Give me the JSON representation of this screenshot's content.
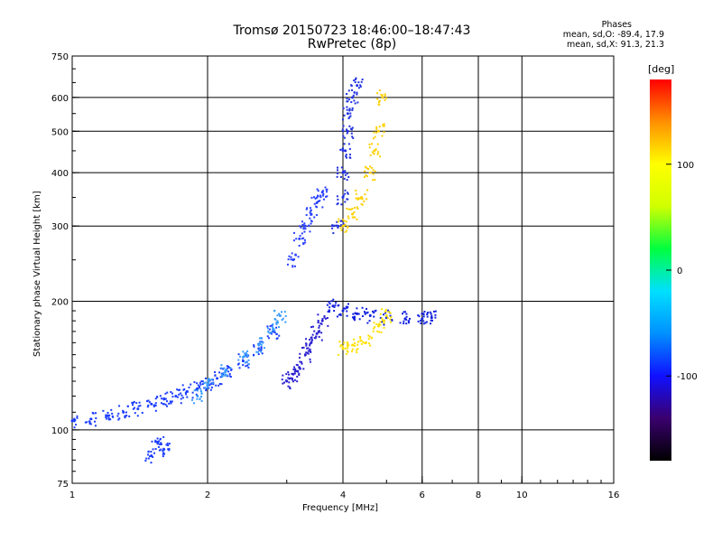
{
  "title": "Tromsø 20150723 18:46:00–18:47:43",
  "subtitle": "RwPretec (8p)",
  "stats": {
    "heading": "Phases",
    "line_o": "mean, sd,O:  -89.4, 17.9",
    "line_x": "mean, sd,X:   91.3, 21.3"
  },
  "chart_data": {
    "type": "scatter",
    "xlabel": "Frequency [MHz]",
    "ylabel": "Stationary phase Virtual Height [km]",
    "x_scale": "log",
    "y_scale": "log",
    "xlim": [
      1,
      16
    ],
    "ylim": [
      75,
      750
    ],
    "x_ticks": [
      1,
      2,
      4,
      6,
      8,
      10,
      16
    ],
    "y_ticks": [
      75,
      100,
      200,
      300,
      400,
      500,
      600,
      750
    ],
    "x_gridlines": [
      2,
      4,
      6,
      8,
      10
    ],
    "y_gridlines": [
      100,
      200,
      300,
      400,
      500,
      600
    ],
    "grid": true,
    "colorbar": {
      "label": "[deg]",
      "range": [
        -180,
        180
      ],
      "ticks": [
        100,
        0,
        -100
      ],
      "stops": [
        "#000000",
        "#3a006e",
        "#1010ff",
        "#0090ff",
        "#00e0ff",
        "#00ff40",
        "#d0ff00",
        "#ffff00",
        "#ff9000",
        "#ff0000"
      ]
    },
    "traces": [
      {
        "name_note": "",
        "color": "#1a3cff",
        "phase": -100,
        "x": [
          1.0,
          1.1,
          1.2,
          1.3,
          1.4,
          1.5,
          1.6,
          1.7,
          1.8,
          1.9,
          2.0,
          2.1,
          2.2,
          2.4,
          2.6,
          2.8
        ],
        "y": [
          105,
          106,
          108,
          110,
          112,
          115,
          118,
          120,
          123,
          125,
          128,
          132,
          138,
          145,
          155,
          170
        ]
      },
      {
        "color": "#3a9cff",
        "phase": -60,
        "x": [
          1.9,
          2.0,
          2.2,
          2.4,
          2.6,
          2.8,
          2.9
        ],
        "y": [
          120,
          128,
          138,
          148,
          158,
          172,
          185
        ]
      },
      {
        "color": "#2a20d0",
        "phase": -110,
        "x": [
          3.0,
          3.1,
          3.2,
          3.3,
          3.4,
          3.5,
          3.6
        ],
        "y": [
          130,
          135,
          140,
          150,
          160,
          168,
          180
        ]
      },
      {
        "color": "#2030e0",
        "phase": -95,
        "x": [
          3.9,
          4.0,
          4.0,
          4.05,
          4.1,
          4.1,
          4.2,
          4.3
        ],
        "y": [
          300,
          350,
          400,
          450,
          500,
          550,
          600,
          640
        ]
      },
      {
        "color": "#2a40ff",
        "phase": -90,
        "x": [
          3.1,
          3.2,
          3.3,
          3.4,
          3.5,
          3.6
        ],
        "y": [
          250,
          280,
          300,
          320,
          340,
          360
        ]
      },
      {
        "color": "#ffd000",
        "phase": 110,
        "x": [
          4.0,
          4.2,
          4.4,
          4.6,
          4.7,
          4.8,
          4.9
        ],
        "y": [
          300,
          320,
          350,
          400,
          450,
          500,
          600
        ]
      },
      {
        "color": "#1020e0",
        "phase": -100,
        "x": [
          3.8,
          4.0,
          4.3,
          4.6,
          5.0,
          5.5,
          6.0,
          6.3
        ],
        "y": [
          195,
          190,
          187,
          185,
          183,
          182,
          182,
          183
        ]
      },
      {
        "color": "#ffe000",
        "phase": 110,
        "x": [
          4.0,
          4.2,
          4.5,
          4.8,
          5.0
        ],
        "y": [
          155,
          158,
          160,
          175,
          185
        ]
      },
      {
        "color": "#1a3cff",
        "phase": -95,
        "x": [
          1.5,
          1.6,
          1.55
        ],
        "y": [
          87,
          90,
          93
        ]
      }
    ]
  }
}
